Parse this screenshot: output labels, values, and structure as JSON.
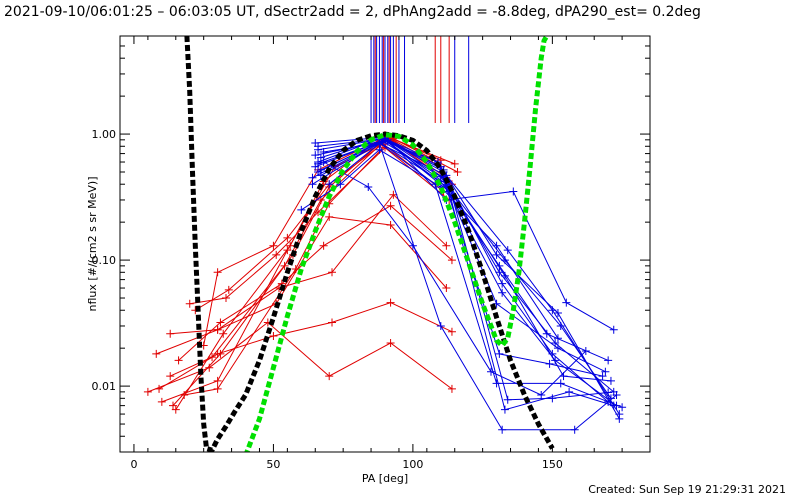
{
  "header": {
    "title": "2021-09-10/06:01:25 – 06:03:05 UT, dSectr2add = 2, dPhAng2add = -8.8deg, dPA290_est=  0.2deg"
  },
  "footer": {
    "created": "Created: Sun Sep 19 21:29:31 2021"
  },
  "chart_data": {
    "type": "line",
    "xlabel": "PA [deg]",
    "ylabel": "nflux [#/(cm2 s sr MeV)]",
    "xlim": [
      -5,
      185
    ],
    "ylim": [
      0.003,
      6
    ],
    "y_scale": "log",
    "x_ticks": [
      0,
      50,
      100,
      150
    ],
    "x_tick_labels": [
      "0",
      "50",
      "100",
      "150"
    ],
    "y_ticks": [
      0.01,
      0.1,
      1
    ],
    "y_tick_labels": [
      "0.01",
      "0.10",
      "1.00"
    ],
    "grid": false,
    "legend": "none",
    "colors": {
      "red": "#e00000",
      "blue": "#0000e0",
      "black": "#000000",
      "green": "#00e000"
    },
    "tick_marks_top": {
      "blue": [
        85,
        86,
        87,
        88,
        89,
        90,
        91,
        92,
        93,
        95,
        97,
        115,
        120
      ],
      "red": [
        86.5,
        89.5,
        91.5,
        94,
        108,
        110,
        113
      ]
    },
    "series_red": [
      {
        "x": [
          5,
          27,
          48,
          70,
          92,
          114
        ],
        "y": [
          0.009,
          0.014,
          0.032,
          0.012,
          0.022,
          0.0095
        ]
      },
      {
        "x": [
          9,
          30,
          50,
          71,
          92,
          114
        ],
        "y": [
          0.0095,
          0.018,
          0.025,
          0.032,
          0.046,
          0.027
        ]
      },
      {
        "x": [
          13,
          30,
          51,
          70,
          92,
          112
        ],
        "y": [
          0.026,
          0.028,
          0.045,
          0.22,
          0.19,
          0.06
        ]
      },
      {
        "x": [
          8,
          30,
          52,
          71,
          93,
          112
        ],
        "y": [
          0.018,
          0.028,
          0.06,
          0.08,
          0.33,
          0.13
        ]
      },
      {
        "x": [
          16,
          31,
          53,
          68,
          92,
          114
        ],
        "y": [
          0.016,
          0.032,
          0.065,
          0.13,
          0.27,
          0.1
        ]
      },
      {
        "x": [
          10,
          30,
          55,
          72,
          93,
          116
        ],
        "y": [
          0.0075,
          0.011,
          0.12,
          0.55,
          0.92,
          0.5
        ]
      },
      {
        "x": [
          13,
          28,
          57,
          70,
          91,
          112
        ],
        "y": [
          0.012,
          0.017,
          0.11,
          0.38,
          0.95,
          0.45
        ]
      },
      {
        "x": [
          15,
          32,
          56,
          68,
          90,
          110
        ],
        "y": [
          0.0065,
          0.026,
          0.13,
          0.42,
          0.98,
          0.55
        ]
      },
      {
        "x": [
          18,
          30,
          58,
          70,
          92,
          114
        ],
        "y": [
          0.0085,
          0.0095,
          0.085,
          0.28,
          0.9,
          0.4
        ]
      },
      {
        "x": [
          14,
          31,
          54,
          67,
          89,
          111
        ],
        "y": [
          0.007,
          0.018,
          0.09,
          0.3,
          0.85,
          0.35
        ]
      },
      {
        "x": [
          20,
          33,
          51,
          66,
          90,
          113
        ],
        "y": [
          0.045,
          0.05,
          0.11,
          0.24,
          0.78,
          0.3
        ]
      },
      {
        "x": [
          22,
          34,
          55,
          70,
          92,
          115
        ],
        "y": [
          0.04,
          0.058,
          0.15,
          0.4,
          0.93,
          0.58
        ]
      },
      {
        "x": [
          25,
          30,
          50,
          66,
          91,
          110
        ],
        "y": [
          0.021,
          0.08,
          0.13,
          0.52,
          0.96,
          0.62
        ]
      }
    ],
    "series_blue": [
      {
        "x": [
          65,
          89,
          110,
          130,
          152,
          174
        ],
        "y": [
          0.85,
          0.94,
          0.55,
          0.11,
          0.038,
          0.0055
        ]
      },
      {
        "x": [
          66,
          90,
          111,
          131,
          151,
          172
        ],
        "y": [
          0.75,
          0.92,
          0.45,
          0.08,
          0.022,
          0.009
        ]
      },
      {
        "x": [
          67,
          88,
          109,
          132,
          150,
          170
        ],
        "y": [
          0.65,
          0.91,
          0.6,
          0.065,
          0.018,
          0.0075
        ]
      },
      {
        "x": [
          65,
          90,
          112,
          133,
          153,
          171
        ],
        "y": [
          0.55,
          0.9,
          0.4,
          0.1,
          0.03,
          0.008
        ]
      },
      {
        "x": [
          68,
          91,
          113,
          130,
          152,
          169
        ],
        "y": [
          0.72,
          0.87,
          0.35,
          0.045,
          0.02,
          0.013
        ]
      },
      {
        "x": [
          66,
          89,
          111,
          134,
          150,
          174
        ],
        "y": [
          0.6,
          0.93,
          0.5,
          0.12,
          0.04,
          0.006
        ]
      },
      {
        "x": [
          64,
          88,
          110,
          131,
          148,
          170
        ],
        "y": [
          0.45,
          0.86,
          0.42,
          0.09,
          0.026,
          0.016
        ]
      },
      {
        "x": [
          67,
          90,
          112,
          132,
          151,
          173
        ],
        "y": [
          0.52,
          0.89,
          0.38,
          0.055,
          0.016,
          0.007
        ]
      },
      {
        "x": [
          65,
          91,
          112,
          136,
          155,
          172
        ],
        "y": [
          0.68,
          0.9,
          0.3,
          0.35,
          0.046,
          0.028
        ]
      },
      {
        "x": [
          66,
          89,
          110,
          133,
          154,
          171
        ],
        "y": [
          0.58,
          0.88,
          0.46,
          0.075,
          0.012,
          0.011
        ]
      },
      {
        "x": [
          64,
          88,
          108,
          130,
          153,
          175
        ],
        "y": [
          0.4,
          0.85,
          0.4,
          0.0105,
          0.0105,
          0.0068
        ]
      },
      {
        "x": [
          66,
          90,
          111,
          133,
          156,
          172
        ],
        "y": [
          0.5,
          0.91,
          0.52,
          0.0065,
          0.009,
          0.007
        ]
      },
      {
        "x": [
          67,
          88,
          112,
          134,
          150,
          170
        ],
        "y": [
          0.47,
          0.84,
          0.47,
          0.0078,
          0.008,
          0.0089
        ]
      },
      {
        "x": [
          70,
          88,
          110,
          132,
          158,
          173
        ],
        "y": [
          0.4,
          0.84,
          0.03,
          0.0045,
          0.0045,
          0.0085
        ]
      },
      {
        "x": [
          66,
          90,
          109,
          131,
          149,
          168
        ],
        "y": [
          0.8,
          0.92,
          0.6,
          0.018,
          0.015,
          0.012
        ]
      },
      {
        "x": [
          60,
          74,
          88,
          110,
          130,
          152
        ],
        "y": [
          0.25,
          0.4,
          0.75,
          0.38,
          0.13,
          0.024
        ]
      },
      {
        "x": [
          68,
          84,
          100,
          128,
          146,
          162
        ],
        "y": [
          0.6,
          0.38,
          0.13,
          0.013,
          0.0085,
          0.019
        ]
      }
    ],
    "series_black": {
      "x": [
        19,
        20,
        21,
        22,
        23,
        24,
        25,
        26,
        28,
        30,
        33,
        36,
        40,
        45,
        50,
        55,
        60,
        65,
        70,
        75,
        80,
        85,
        90,
        95,
        100,
        105,
        110,
        115,
        120,
        125,
        130,
        135,
        140,
        145,
        150
      ],
      "y": [
        6,
        2.2,
        0.5,
        0.13,
        0.04,
        0.012,
        0.005,
        0.0032,
        0.0031,
        0.0038,
        0.0048,
        0.0062,
        0.0085,
        0.016,
        0.035,
        0.08,
        0.17,
        0.32,
        0.53,
        0.74,
        0.89,
        0.97,
        1.0,
        0.97,
        0.89,
        0.74,
        0.53,
        0.32,
        0.17,
        0.08,
        0.035,
        0.016,
        0.0085,
        0.005,
        0.0032
      ]
    },
    "series_green": {
      "x": [
        40,
        45,
        50,
        55,
        60,
        65,
        70,
        75,
        80,
        85,
        90,
        95,
        100,
        105,
        110,
        115,
        120,
        125,
        128,
        130,
        132,
        134,
        136,
        138,
        140,
        142,
        144,
        146,
        147,
        148
      ],
      "y": [
        0.0028,
        0.0055,
        0.014,
        0.036,
        0.085,
        0.17,
        0.32,
        0.52,
        0.73,
        0.9,
        0.99,
        0.96,
        0.82,
        0.6,
        0.38,
        0.2,
        0.095,
        0.045,
        0.03,
        0.023,
        0.021,
        0.024,
        0.04,
        0.08,
        0.2,
        0.55,
        1.6,
        4.0,
        5.5,
        6
      ]
    }
  }
}
